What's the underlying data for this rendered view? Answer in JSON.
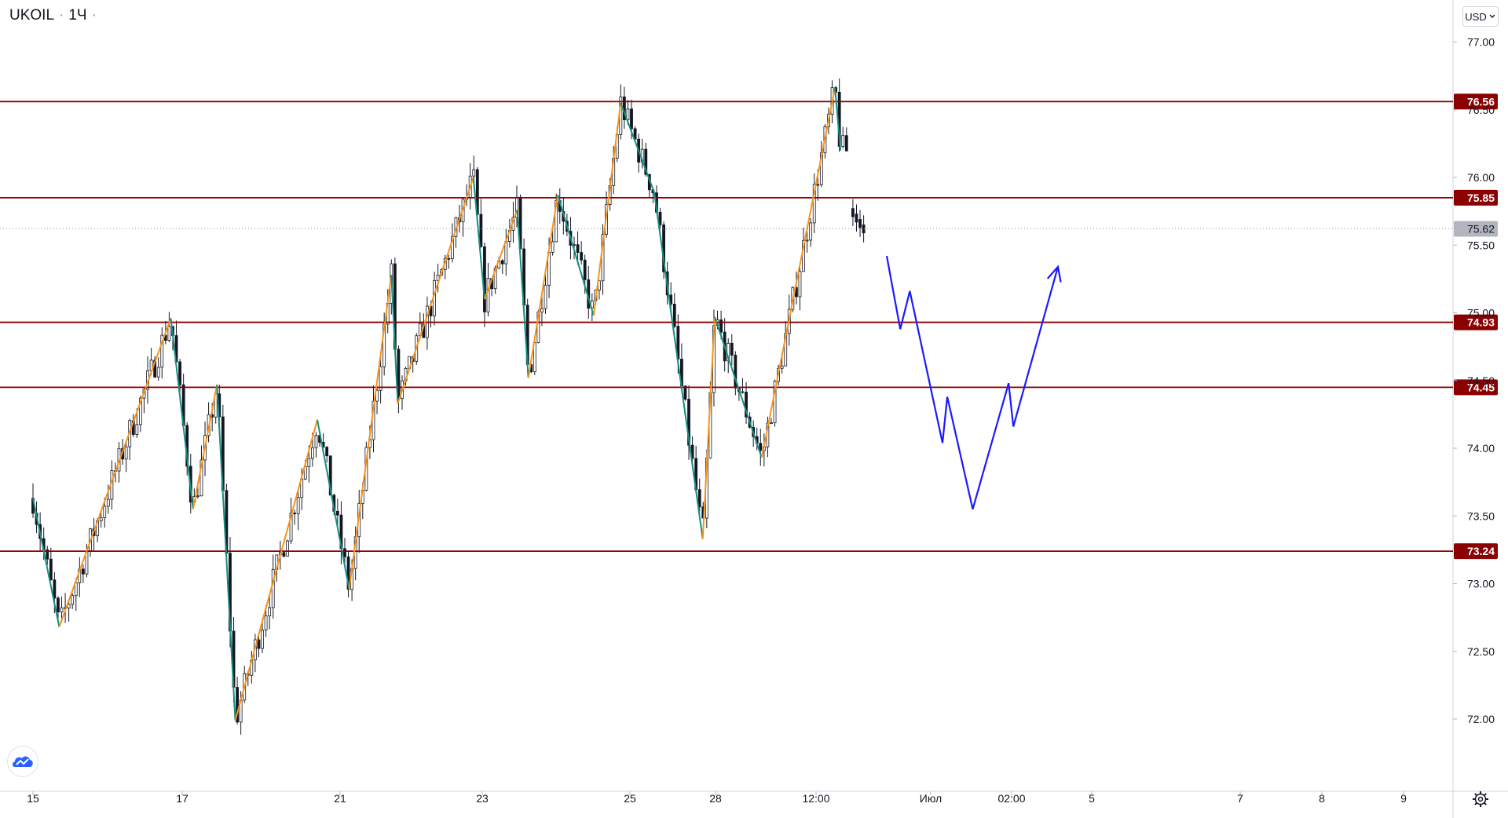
{
  "header": {
    "symbol": "UKOIL",
    "interval": "1Ч"
  },
  "currency_button": {
    "label": "USD"
  },
  "icons": {
    "logo": "tradingview-cloud-icon",
    "settings": "gear-icon",
    "dropdown": "chevron-down-icon"
  },
  "colors": {
    "level_line": "#8b0000",
    "level_label_bg": "#8b0000",
    "current_price_bg": "#b2b5be",
    "zigzag_up": "#f7931a",
    "zigzag_down": "#168f7f",
    "forecast": "#1a1aff",
    "candles": "#131722"
  },
  "chart_data": {
    "type": "candlestick",
    "title": "UKOIL · 1Ч",
    "currency": "USD",
    "y_ticks": [
      "77.00",
      "76.50",
      "76.00",
      "75.50",
      "75.00",
      "74.50",
      "74.00",
      "73.50",
      "73.00",
      "72.50",
      "72.00"
    ],
    "y_range": [
      71.6,
      77.2
    ],
    "x_ticks": [
      "15",
      "17",
      "21",
      "23",
      "25",
      "28",
      "12:00",
      "Июл",
      "02:00",
      "5",
      "7",
      "8",
      "9"
    ],
    "current_price": {
      "value": 75.62,
      "label": "75.62"
    },
    "horizontal_levels": [
      {
        "value": 76.56,
        "label": "76.56"
      },
      {
        "value": 75.85,
        "label": "75.85"
      },
      {
        "value": 74.93,
        "label": "74.93"
      },
      {
        "value": 74.45,
        "label": "74.45"
      },
      {
        "value": 73.24,
        "label": "73.24"
      }
    ],
    "zigzag_pivots": [
      {
        "x": 0.0,
        "y": 73.63
      },
      {
        "x": 0.33,
        "y": 72.68
      },
      {
        "x": 1.73,
        "y": 74.96
      },
      {
        "x": 2.01,
        "y": 73.55
      },
      {
        "x": 2.31,
        "y": 74.47
      },
      {
        "x": 2.54,
        "y": 71.99
      },
      {
        "x": 3.57,
        "y": 74.21
      },
      {
        "x": 3.97,
        "y": 72.96
      },
      {
        "x": 4.5,
        "y": 75.28
      },
      {
        "x": 4.58,
        "y": 74.33
      },
      {
        "x": 5.53,
        "y": 76.0
      },
      {
        "x": 5.67,
        "y": 75.1
      },
      {
        "x": 6.08,
        "y": 75.76
      },
      {
        "x": 6.22,
        "y": 74.52
      },
      {
        "x": 6.59,
        "y": 75.87
      },
      {
        "x": 7.04,
        "y": 74.98
      },
      {
        "x": 7.38,
        "y": 76.55
      },
      {
        "x": 7.8,
        "y": 75.89
      },
      {
        "x": 8.41,
        "y": 73.33
      },
      {
        "x": 8.56,
        "y": 74.97
      },
      {
        "x": 9.15,
        "y": 73.93
      },
      {
        "x": 10.07,
        "y": 76.66
      },
      {
        "x": 10.14,
        "y": 76.2
      }
    ],
    "forecast_path": [
      {
        "x": 10.72,
        "y": 75.42
      },
      {
        "x": 10.89,
        "y": 74.88
      },
      {
        "x": 11.01,
        "y": 75.16
      },
      {
        "x": 11.42,
        "y": 74.04
      },
      {
        "x": 11.48,
        "y": 74.38
      },
      {
        "x": 11.8,
        "y": 73.55
      },
      {
        "x": 12.25,
        "y": 74.48
      },
      {
        "x": 12.31,
        "y": 74.16
      },
      {
        "x": 12.87,
        "y": 75.34
      }
    ]
  }
}
